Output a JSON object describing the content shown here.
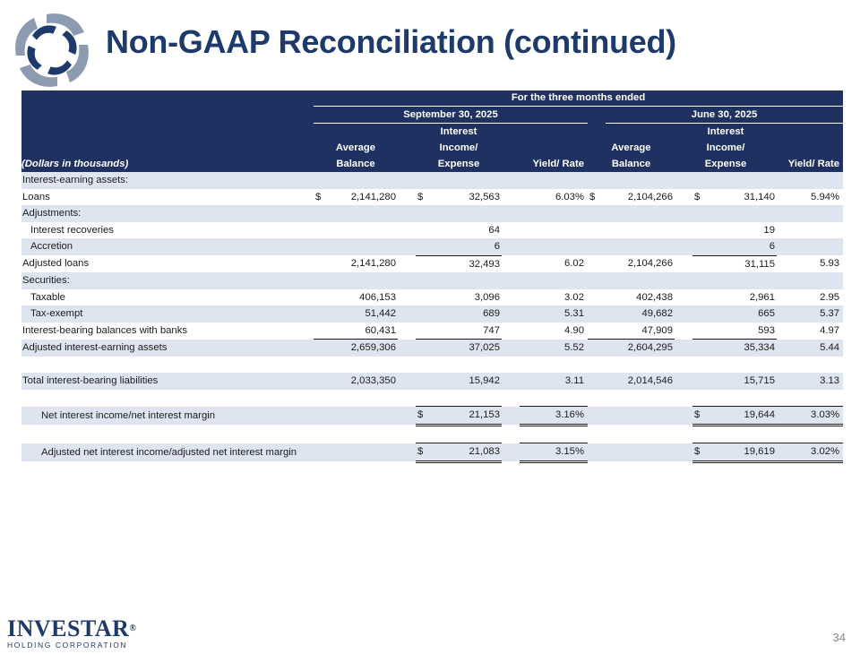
{
  "title": "Non-GAAP Reconciliation (continued)",
  "brand": {
    "name": "INVESTAR",
    "subtitle": "HOLDING CORPORATION",
    "trademark": "®"
  },
  "page_number": "34",
  "colors": {
    "header_bg": "#1e3160",
    "title": "#1d3a6b",
    "row_shade": "#dfe4f1"
  },
  "table": {
    "header_period": "For the three months ended",
    "period1": "September 30, 2025",
    "period2": "June 30, 2025",
    "units": "(Dollars in thousands)",
    "col_interest_l1": "Interest",
    "col_interest_l2": "Income/",
    "col_interest_l3": "Expense",
    "col_avg_l1": "Average",
    "col_avg_l2": "Balance",
    "col_yield": "Yield/ Rate",
    "rows": {
      "iea_header": "Interest-earning assets:",
      "loans": {
        "label": "Loans",
        "cur": "$",
        "avg1": "2,141,280",
        "int1": "32,563",
        "yld1": "6.03%",
        "avg2": "2,104,266",
        "int2": "31,140",
        "yld2": "5.94%"
      },
      "adjustments": "Adjustments:",
      "recoveries": {
        "label": "Interest recoveries",
        "int1": "64",
        "int2": "19"
      },
      "accretion": {
        "label": "Accretion",
        "int1": "6",
        "int2": "6"
      },
      "adj_loans": {
        "label": "Adjusted loans",
        "avg1": "2,141,280",
        "int1": "32,493",
        "yld1": "6.02",
        "avg2": "2,104,266",
        "int2": "31,115",
        "yld2": "5.93"
      },
      "securities": "Securities:",
      "taxable": {
        "label": "Taxable",
        "avg1": "406,153",
        "int1": "3,096",
        "yld1": "3.02",
        "avg2": "402,438",
        "int2": "2,961",
        "yld2": "2.95"
      },
      "tax_exempt": {
        "label": "Tax-exempt",
        "avg1": "51,442",
        "int1": "689",
        "yld1": "5.31",
        "avg2": "49,682",
        "int2": "665",
        "yld2": "5.37"
      },
      "ib_banks": {
        "label": "Interest-bearing balances with banks",
        "avg1": "60,431",
        "int1": "747",
        "yld1": "4.90",
        "avg2": "47,909",
        "int2": "593",
        "yld2": "4.97"
      },
      "adj_iea": {
        "label": "Adjusted interest-earning assets",
        "avg1": "2,659,306",
        "int1": "37,025",
        "yld1": "5.52",
        "avg2": "2,604,295",
        "int2": "35,334",
        "yld2": "5.44"
      },
      "tibl": {
        "label": "Total interest-bearing liabilities",
        "avg1": "2,033,350",
        "int1": "15,942",
        "yld1": "3.11",
        "avg2": "2,014,546",
        "int2": "15,715",
        "yld2": "3.13"
      },
      "nim": {
        "label": "Net interest income/net interest margin",
        "cur": "$",
        "int1": "21,153",
        "yld1": "3.16%",
        "int2": "19,644",
        "yld2": "3.03%"
      },
      "adj_nim": {
        "label": "Adjusted net interest income/adjusted net interest margin",
        "cur": "$",
        "int1": "21,083",
        "yld1": "3.15%",
        "int2": "19,619",
        "yld2": "3.02%"
      }
    }
  }
}
